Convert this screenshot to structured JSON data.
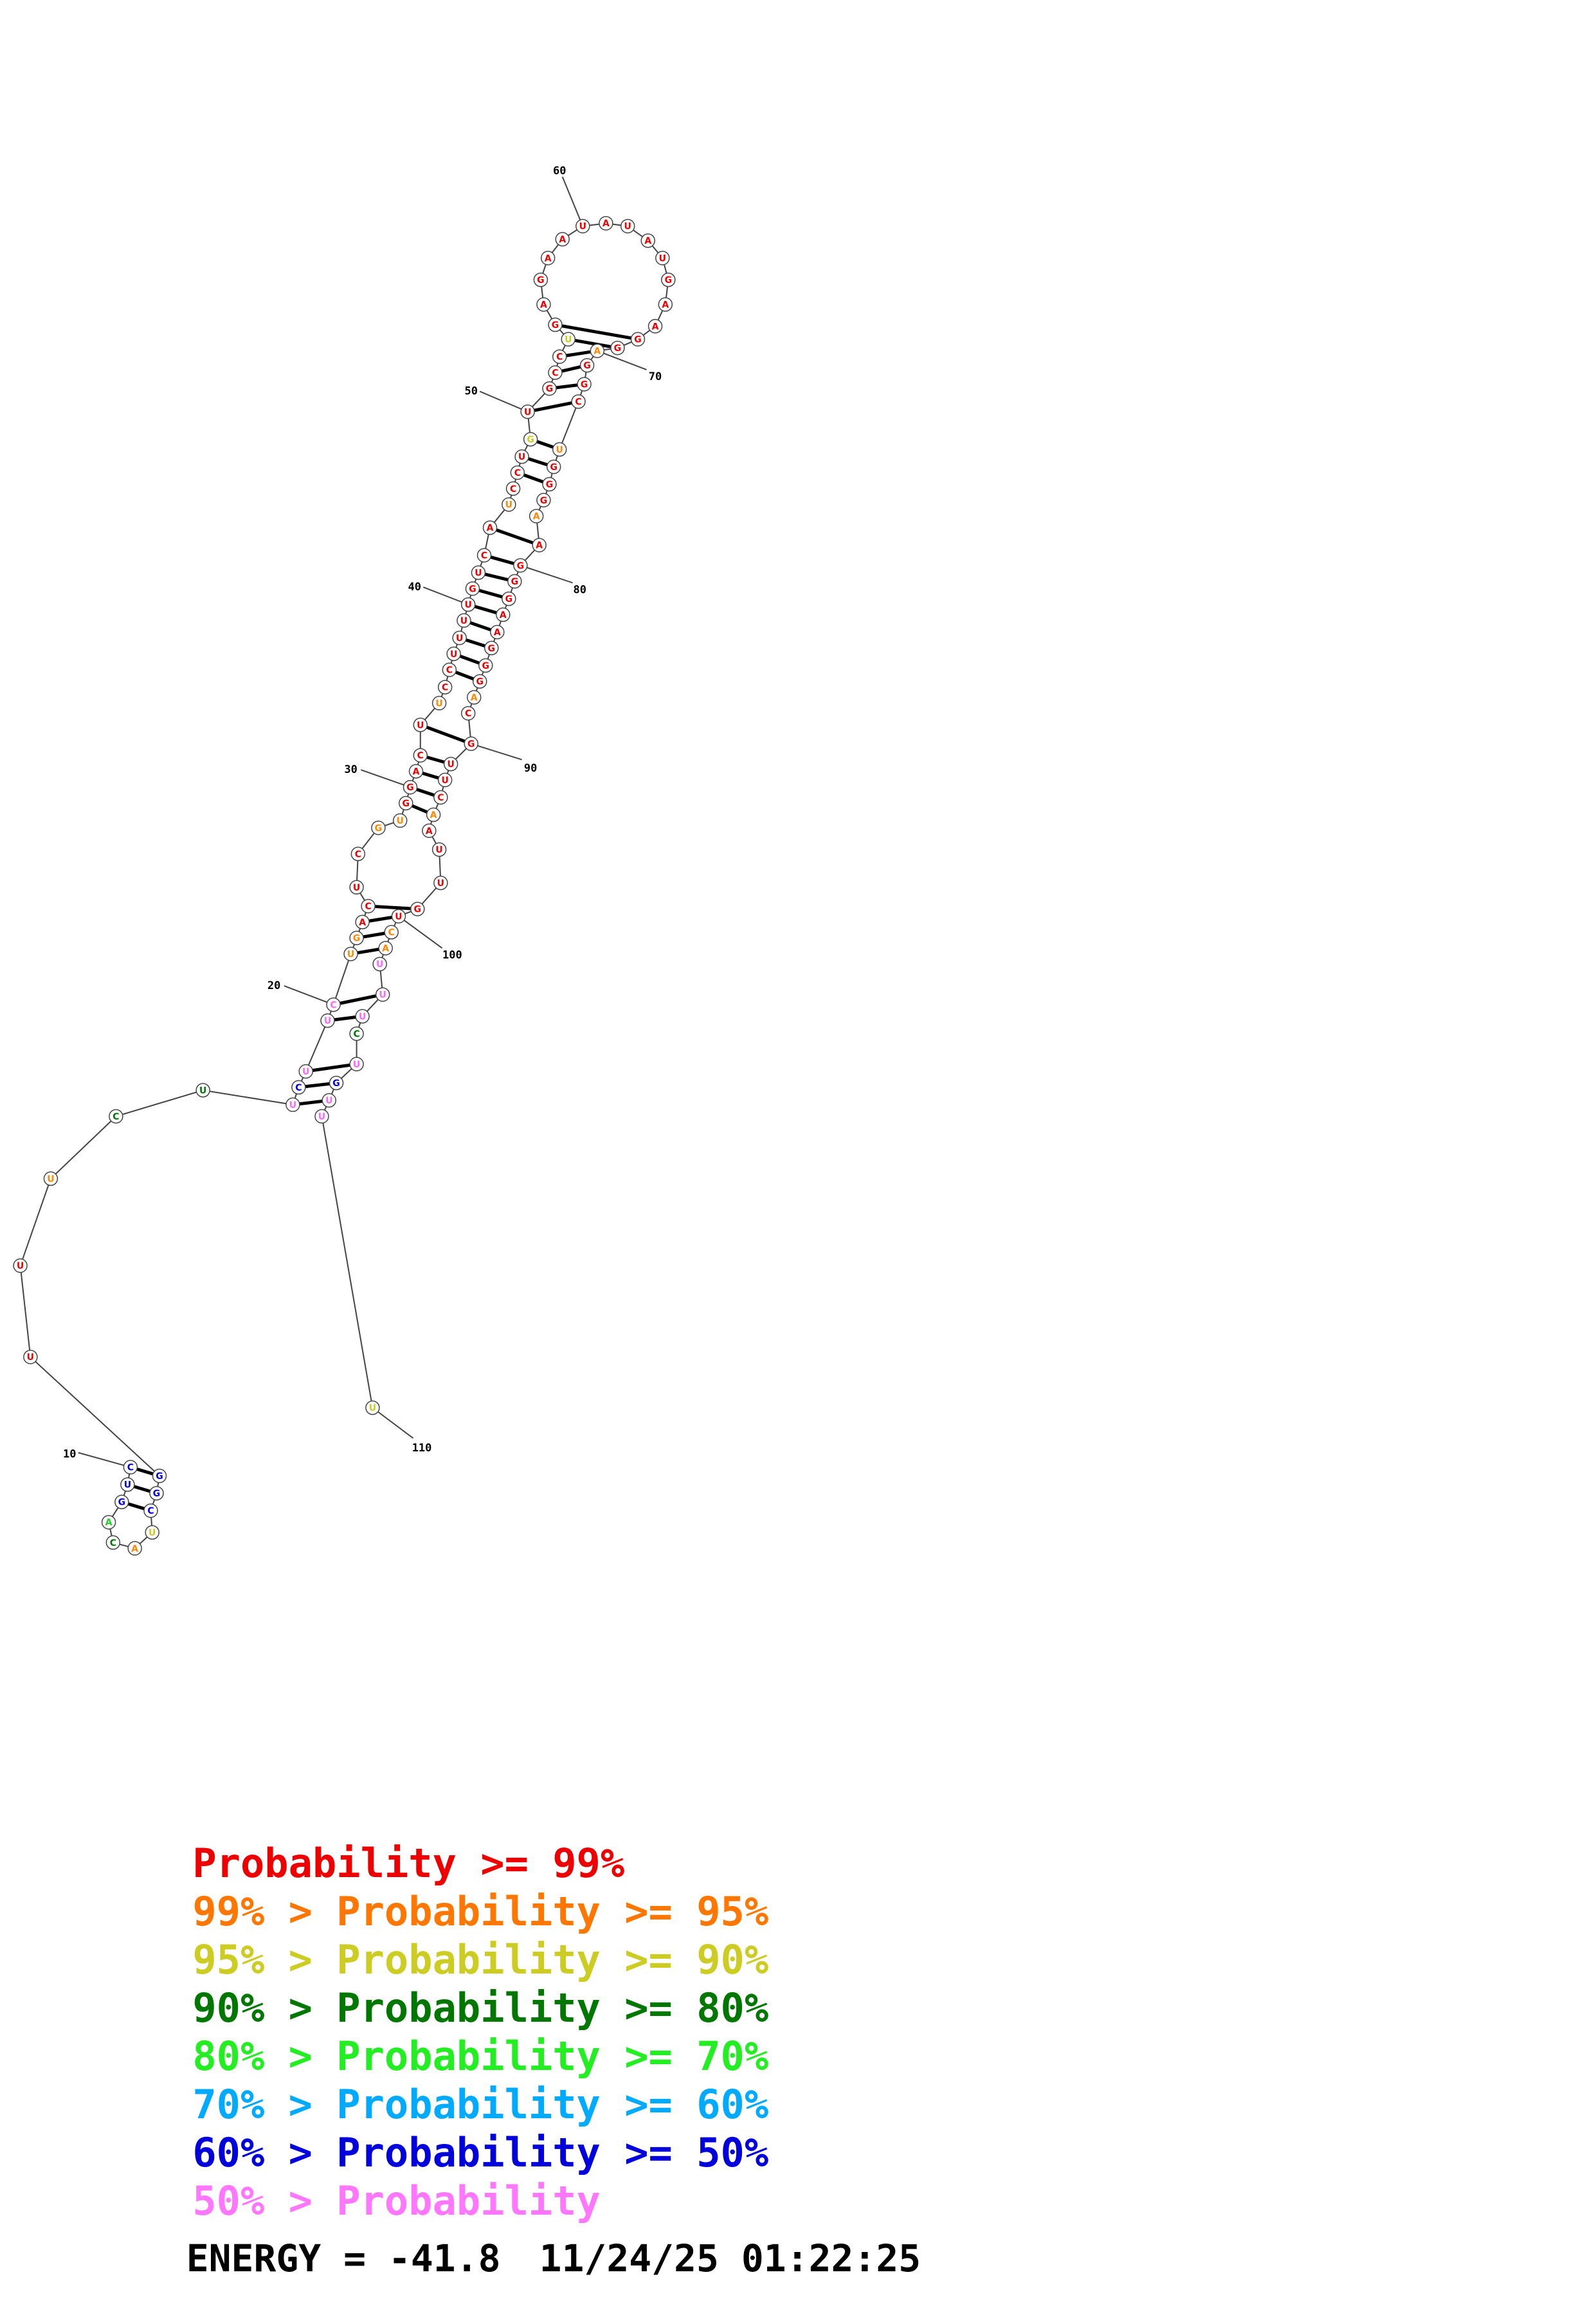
{
  "structure": {
    "nucleotides": [
      {
        "n": 1,
        "base": "C",
        "color": "#0000dd"
      },
      {
        "n": 2,
        "base": "U",
        "color": "#0000dd"
      },
      {
        "n": 3,
        "base": "G",
        "color": "#0000dd"
      },
      {
        "n": 4,
        "base": "A",
        "color": "#22cc22"
      },
      {
        "n": 5,
        "base": "C",
        "color": "#007700"
      },
      {
        "n": 6,
        "base": "A",
        "color": "#ff8800"
      },
      {
        "n": 7,
        "base": "U",
        "color": "#cccc22"
      },
      {
        "n": 8,
        "base": "C",
        "color": "#0000dd"
      },
      {
        "n": 9,
        "base": "G",
        "color": "#0000dd"
      },
      {
        "n": 10,
        "base": "G",
        "color": "#0000dd"
      },
      {
        "n": 11,
        "base": "U",
        "color": "#ee0000"
      },
      {
        "n": 12,
        "base": "U",
        "color": "#ee0000"
      },
      {
        "n": 13,
        "base": "U",
        "color": "#ff8800"
      },
      {
        "n": 14,
        "base": "C",
        "color": "#007700"
      },
      {
        "n": 15,
        "base": "U",
        "color": "#007700"
      },
      {
        "n": 16,
        "base": "U",
        "color": "#ff66ff"
      },
      {
        "n": 17,
        "base": "C",
        "color": "#0000dd"
      },
      {
        "n": 18,
        "base": "U",
        "color": "#ff66ff"
      },
      {
        "n": 19,
        "base": "U",
        "color": "#ff66ff"
      },
      {
        "n": 20,
        "base": "C",
        "color": "#ff66ff"
      },
      {
        "n": 21,
        "base": "U",
        "color": "#ff8800"
      },
      {
        "n": 22,
        "base": "G",
        "color": "#ff8800"
      },
      {
        "n": 23,
        "base": "A",
        "color": "#ee0000"
      },
      {
        "n": 24,
        "base": "C",
        "color": "#ee0000"
      },
      {
        "n": 25,
        "base": "U",
        "color": "#ee0000"
      },
      {
        "n": 26,
        "base": "C",
        "color": "#ee0000"
      },
      {
        "n": 27,
        "base": "G",
        "color": "#ff8800"
      },
      {
        "n": 28,
        "base": "U",
        "color": "#ff8800"
      },
      {
        "n": 29,
        "base": "G",
        "color": "#ee0000"
      },
      {
        "n": 30,
        "base": "G",
        "color": "#ee0000"
      },
      {
        "n": 31,
        "base": "A",
        "color": "#ee0000"
      },
      {
        "n": 32,
        "base": "C",
        "color": "#ee0000"
      },
      {
        "n": 33,
        "base": "U",
        "color": "#ee0000"
      },
      {
        "n": 34,
        "base": "U",
        "color": "#ff8800"
      },
      {
        "n": 35,
        "base": "C",
        "color": "#ee0000"
      },
      {
        "n": 36,
        "base": "C",
        "color": "#ee0000"
      },
      {
        "n": 37,
        "base": "U",
        "color": "#ee0000"
      },
      {
        "n": 38,
        "base": "U",
        "color": "#ee0000"
      },
      {
        "n": 39,
        "base": "U",
        "color": "#ee0000"
      },
      {
        "n": 40,
        "base": "U",
        "color": "#ee0000"
      },
      {
        "n": 41,
        "base": "G",
        "color": "#ee0000"
      },
      {
        "n": 42,
        "base": "U",
        "color": "#ee0000"
      },
      {
        "n": 43,
        "base": "C",
        "color": "#ee0000"
      },
      {
        "n": 44,
        "base": "A",
        "color": "#ee0000"
      },
      {
        "n": 45,
        "base": "U",
        "color": "#ff8800"
      },
      {
        "n": 46,
        "base": "C",
        "color": "#ee0000"
      },
      {
        "n": 47,
        "base": "C",
        "color": "#ee0000"
      },
      {
        "n": 48,
        "base": "U",
        "color": "#ee0000"
      },
      {
        "n": 49,
        "base": "G",
        "color": "#cccc22"
      },
      {
        "n": 50,
        "base": "U",
        "color": "#ee0000"
      },
      {
        "n": 51,
        "base": "G",
        "color": "#ee0000"
      },
      {
        "n": 52,
        "base": "C",
        "color": "#ee0000"
      },
      {
        "n": 53,
        "base": "C",
        "color": "#ee0000"
      },
      {
        "n": 54,
        "base": "U",
        "color": "#cccc22"
      },
      {
        "n": 55,
        "base": "G",
        "color": "#ee0000"
      },
      {
        "n": 56,
        "base": "A",
        "color": "#ee0000"
      },
      {
        "n": 57,
        "base": "G",
        "color": "#ee0000"
      },
      {
        "n": 58,
        "base": "A",
        "color": "#ee0000"
      },
      {
        "n": 59,
        "base": "A",
        "color": "#ee0000"
      },
      {
        "n": 60,
        "base": "U",
        "color": "#ee0000"
      },
      {
        "n": 61,
        "base": "A",
        "color": "#ee0000"
      },
      {
        "n": 62,
        "base": "U",
        "color": "#ee0000"
      },
      {
        "n": 63,
        "base": "A",
        "color": "#ee0000"
      },
      {
        "n": 64,
        "base": "U",
        "color": "#ee0000"
      },
      {
        "n": 65,
        "base": "G",
        "color": "#ee0000"
      },
      {
        "n": 66,
        "base": "A",
        "color": "#ee0000"
      },
      {
        "n": 67,
        "base": "A",
        "color": "#ee0000"
      },
      {
        "n": 68,
        "base": "G",
        "color": "#ee0000"
      },
      {
        "n": 69,
        "base": "G",
        "color": "#ee0000"
      },
      {
        "n": 70,
        "base": "A",
        "color": "#ff8800"
      },
      {
        "n": 71,
        "base": "G",
        "color": "#ee0000"
      },
      {
        "n": 72,
        "base": "G",
        "color": "#ee0000"
      },
      {
        "n": 73,
        "base": "C",
        "color": "#ee0000"
      },
      {
        "n": 74,
        "base": "U",
        "color": "#ff8800"
      },
      {
        "n": 75,
        "base": "G",
        "color": "#ee0000"
      },
      {
        "n": 76,
        "base": "G",
        "color": "#ee0000"
      },
      {
        "n": 77,
        "base": "G",
        "color": "#ee0000"
      },
      {
        "n": 78,
        "base": "A",
        "color": "#ff8800"
      },
      {
        "n": 79,
        "base": "A",
        "color": "#ee0000"
      },
      {
        "n": 80,
        "base": "G",
        "color": "#ee0000"
      },
      {
        "n": 81,
        "base": "G",
        "color": "#ee0000"
      },
      {
        "n": 82,
        "base": "G",
        "color": "#ee0000"
      },
      {
        "n": 83,
        "base": "A",
        "color": "#ee0000"
      },
      {
        "n": 84,
        "base": "A",
        "color": "#ee0000"
      },
      {
        "n": 85,
        "base": "G",
        "color": "#ee0000"
      },
      {
        "n": 86,
        "base": "G",
        "color": "#ee0000"
      },
      {
        "n": 87,
        "base": "G",
        "color": "#ee0000"
      },
      {
        "n": 88,
        "base": "A",
        "color": "#ff8800"
      },
      {
        "n": 89,
        "base": "C",
        "color": "#ee0000"
      },
      {
        "n": 90,
        "base": "G",
        "color": "#ee0000"
      },
      {
        "n": 91,
        "base": "U",
        "color": "#ee0000"
      },
      {
        "n": 92,
        "base": "U",
        "color": "#ee0000"
      },
      {
        "n": 93,
        "base": "C",
        "color": "#ee0000"
      },
      {
        "n": 94,
        "base": "A",
        "color": "#ff8800"
      },
      {
        "n": 95,
        "base": "A",
        "color": "#ee0000"
      },
      {
        "n": 96,
        "base": "U",
        "color": "#ee0000"
      },
      {
        "n": 97,
        "base": "U",
        "color": "#ee0000"
      },
      {
        "n": 98,
        "base": "G",
        "color": "#ee0000"
      },
      {
        "n": 99,
        "base": "U",
        "color": "#ee0000"
      },
      {
        "n": 100,
        "base": "C",
        "color": "#ff8800"
      },
      {
        "n": 101,
        "base": "A",
        "color": "#ff8800"
      },
      {
        "n": 102,
        "base": "U",
        "color": "#ff66ff"
      },
      {
        "n": 103,
        "base": "U",
        "color": "#ff66ff"
      },
      {
        "n": 104,
        "base": "U",
        "color": "#ff66ff"
      },
      {
        "n": 105,
        "base": "C",
        "color": "#007700"
      },
      {
        "n": 106,
        "base": "U",
        "color": "#ff66ff"
      },
      {
        "n": 107,
        "base": "G",
        "color": "#0000dd"
      },
      {
        "n": 108,
        "base": "U",
        "color": "#ff66ff"
      },
      {
        "n": 109,
        "base": "U",
        "color": "#ff66ff"
      },
      {
        "n": 110,
        "base": "U",
        "color": "#cccc22"
      }
    ],
    "pairs": [
      [
        1,
        10
      ],
      [
        2,
        9
      ],
      [
        3,
        8
      ],
      [
        16,
        108
      ],
      [
        17,
        107
      ],
      [
        18,
        106
      ],
      [
        19,
        104
      ],
      [
        20,
        103
      ],
      [
        21,
        101
      ],
      [
        22,
        100
      ],
      [
        23,
        99
      ],
      [
        24,
        98
      ],
      [
        29,
        94
      ],
      [
        30,
        93
      ],
      [
        31,
        92
      ],
      [
        32,
        91
      ],
      [
        33,
        90
      ],
      [
        36,
        87
      ],
      [
        37,
        86
      ],
      [
        38,
        85
      ],
      [
        39,
        84
      ],
      [
        40,
        83
      ],
      [
        41,
        82
      ],
      [
        42,
        81
      ],
      [
        43,
        80
      ],
      [
        44,
        79
      ],
      [
        47,
        76
      ],
      [
        48,
        75
      ],
      [
        49,
        74
      ],
      [
        50,
        73
      ],
      [
        51,
        72
      ],
      [
        52,
        71
      ],
      [
        53,
        70
      ],
      [
        54,
        69
      ],
      [
        55,
        68
      ]
    ],
    "index_labels": [
      "10",
      "20",
      "30",
      "40",
      "50",
      "60",
      "70",
      "80",
      "90",
      "100",
      "110"
    ]
  },
  "legend": [
    {
      "prefix": "",
      "label": "Probability >= 99%",
      "color": "#ee0000"
    },
    {
      "prefix": "99% > ",
      "label": "Probability >= 95%",
      "color": "#ff7700"
    },
    {
      "prefix": "95% > ",
      "label": "Probability >= 90%",
      "color": "#cccc22"
    },
    {
      "prefix": "90% > ",
      "label": "Probability >= 80%",
      "color": "#007700"
    },
    {
      "prefix": "80% > ",
      "label": "Probability >= 70%",
      "color": "#22ee22"
    },
    {
      "prefix": "70% > ",
      "label": "Probability >= 60%",
      "color": "#00aaff"
    },
    {
      "prefix": "60% > ",
      "label": "Probability >= 50%",
      "color": "#0000dd"
    },
    {
      "prefix": "50% > ",
      "label": "Probability",
      "color": "#ff77ff"
    }
  ],
  "footer": {
    "energy": "ENERGY = -41.8",
    "timestamp": "11/24/25 01:22:25"
  }
}
